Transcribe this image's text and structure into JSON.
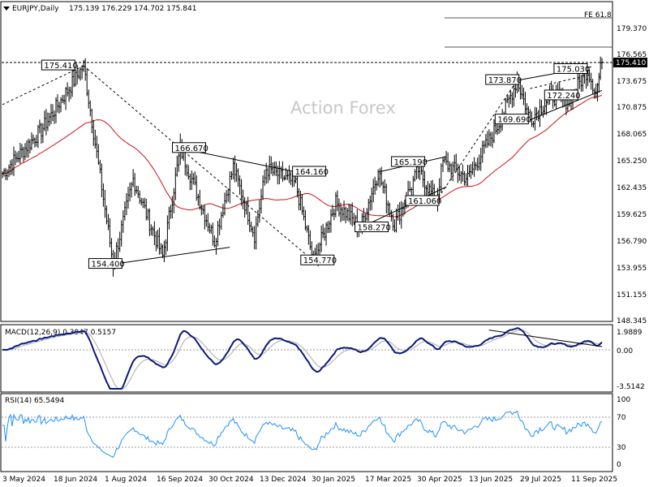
{
  "header": {
    "symbol": "EURJPY,Daily",
    "ohlc": "175.139 176.229 174.702 175.841"
  },
  "watermark": "Action Forex",
  "chart_data": {
    "type": "candlestick",
    "y_ticks": [
      "179.370",
      "176.565",
      "173.675",
      "170.875",
      "168.065",
      "165.250",
      "162.435",
      "159.625",
      "156.790",
      "153.955",
      "151.155",
      "148.345"
    ],
    "ylim": [
      148.345,
      179.37
    ],
    "current_price": "175.410",
    "fe_label": "FE 61.8",
    "x_ticks": [
      "3 May 2024",
      "18 Jun 2024",
      "1 Aug 2024",
      "16 Sep 2024",
      "30 Oct 2024",
      "13 Dec 2024",
      "30 Jan 2025",
      "17 Mar 2025",
      "30 Apr 2025",
      "13 Jun 2025",
      "29 Jul 2025",
      "11 Sep 2025"
    ],
    "price_labels": [
      "175.410",
      "154.400",
      "166.670",
      "164.160",
      "154.770",
      "158.270",
      "165.190",
      "161.060",
      "173.870",
      "169.690",
      "172.240",
      "175.030"
    ],
    "key_prices": [
      {
        "date": "2024-05-03",
        "price": 164.0
      },
      {
        "date": "2024-06-05",
        "price": 168.6
      },
      {
        "date": "2024-07-11",
        "price": 175.41
      },
      {
        "date": "2024-08-05",
        "price": 154.4
      },
      {
        "date": "2024-08-22",
        "price": 163.4
      },
      {
        "date": "2024-09-16",
        "price": 155.2
      },
      {
        "date": "2024-10-01",
        "price": 166.67
      },
      {
        "date": "2024-10-30",
        "price": 156.9
      },
      {
        "date": "2024-11-15",
        "price": 164.7
      },
      {
        "date": "2024-12-03",
        "price": 157.5
      },
      {
        "date": "2024-12-13",
        "price": 164.5
      },
      {
        "date": "2025-01-07",
        "price": 162.9
      },
      {
        "date": "2025-01-22",
        "price": 154.77
      },
      {
        "date": "2025-02-10",
        "price": 160.9
      },
      {
        "date": "2025-03-03",
        "price": 158.27
      },
      {
        "date": "2025-03-18",
        "price": 164.16
      },
      {
        "date": "2025-04-01",
        "price": 158.6
      },
      {
        "date": "2025-04-21",
        "price": 164.4
      },
      {
        "date": "2025-05-06",
        "price": 161.06
      },
      {
        "date": "2025-05-12",
        "price": 165.19
      },
      {
        "date": "2025-06-02",
        "price": 163.5
      },
      {
        "date": "2025-06-30",
        "price": 169.69
      },
      {
        "date": "2025-07-14",
        "price": 173.87
      },
      {
        "date": "2025-07-25",
        "price": 169.69
      },
      {
        "date": "2025-08-12",
        "price": 172.24
      },
      {
        "date": "2025-08-26",
        "price": 171.6
      },
      {
        "date": "2025-09-12",
        "price": 175.03
      },
      {
        "date": "2025-09-19",
        "price": 172.5
      },
      {
        "date": "2025-09-24",
        "price": 175.84
      }
    ],
    "macd": {
      "title": "MACD(12,26,9) 0.3947 0.5157",
      "y_ticks": [
        "1.9889",
        "0.00",
        "-3.5142"
      ],
      "ylim": [
        -3.5142,
        1.9889
      ]
    },
    "rsi": {
      "title": "RSI(14) 65.5494",
      "y_ticks": [
        "100",
        "70",
        "30",
        "0"
      ],
      "ylim": [
        0,
        100
      ],
      "levels": [
        70,
        30
      ]
    }
  }
}
